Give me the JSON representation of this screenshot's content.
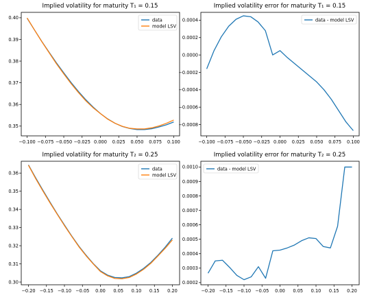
{
  "colors": {
    "data": "#1f77b4",
    "model": "#ff7f0e"
  },
  "chart_data": [
    {
      "id": "tl",
      "type": "line",
      "title": "Implied volatility for maturity T₁ = 0.15",
      "xlabel": "",
      "ylabel": "",
      "xlim": [
        -0.108,
        0.108
      ],
      "ylim": [
        0.3455,
        0.4025
      ],
      "xticks": [
        -0.1,
        -0.075,
        -0.05,
        -0.025,
        0.0,
        0.025,
        0.05,
        0.075,
        0.1
      ],
      "xtick_labels": [
        "−0.100",
        "−0.075",
        "−0.050",
        "−0.025",
        "0.000",
        "0.025",
        "0.050",
        "0.075",
        "0.100"
      ],
      "yticks": [
        0.35,
        0.36,
        0.37,
        0.38,
        0.39,
        0.4
      ],
      "ytick_labels": [
        "0.35",
        "0.36",
        "0.37",
        "0.38",
        "0.39",
        "0.40"
      ],
      "legend": "top-right",
      "grid": false,
      "series": [
        {
          "name": "data",
          "color": "#1f77b4",
          "x": [
            -0.1,
            -0.09,
            -0.08,
            -0.07,
            -0.06,
            -0.05,
            -0.04,
            -0.03,
            -0.02,
            -0.01,
            0.0,
            0.01,
            0.02,
            0.03,
            0.04,
            0.05,
            0.06,
            0.07,
            0.08,
            0.09,
            0.1
          ],
          "y": [
            0.3998,
            0.3944,
            0.3891,
            0.3841,
            0.3792,
            0.3746,
            0.3701,
            0.366,
            0.3622,
            0.3588,
            0.3558,
            0.3533,
            0.3513,
            0.3498,
            0.3489,
            0.3484,
            0.3484,
            0.3488,
            0.3496,
            0.3506,
            0.3519
          ]
        },
        {
          "name": "model LSV",
          "color": "#ff7f0e",
          "x": [
            -0.1,
            -0.09,
            -0.08,
            -0.07,
            -0.06,
            -0.05,
            -0.04,
            -0.03,
            -0.02,
            -0.01,
            0.0,
            0.01,
            0.02,
            0.03,
            0.04,
            0.05,
            0.06,
            0.07,
            0.08,
            0.09,
            0.1
          ],
          "y": [
            0.3999,
            0.3944,
            0.389,
            0.3839,
            0.3788,
            0.3741,
            0.3696,
            0.3655,
            0.3617,
            0.3585,
            0.3558,
            0.3532,
            0.3513,
            0.3499,
            0.349,
            0.3487,
            0.3487,
            0.3492,
            0.3501,
            0.3513,
            0.3528
          ]
        }
      ]
    },
    {
      "id": "tr",
      "type": "line",
      "title": "Implied volatility error for maturity T₁ = 0.15",
      "xlabel": "",
      "ylabel": "",
      "xlim": [
        -0.108,
        0.108
      ],
      "ylim": [
        -0.00093,
        0.00049
      ],
      "xticks": [
        -0.1,
        -0.075,
        -0.05,
        -0.025,
        0.0,
        0.025,
        0.05,
        0.075,
        0.1
      ],
      "xtick_labels": [
        "−0.100",
        "−0.075",
        "−0.050",
        "−0.025",
        "0.000",
        "0.025",
        "0.050",
        "0.075",
        "0.100"
      ],
      "yticks": [
        -0.0008,
        -0.0006,
        -0.0004,
        -0.0002,
        0.0,
        0.0002,
        0.0004
      ],
      "ytick_labels": [
        "−0.0008",
        "−0.0006",
        "−0.0004",
        "−0.0002",
        "0.0000",
        "0.0002",
        "0.0004"
      ],
      "legend": "top-right",
      "grid": false,
      "series": [
        {
          "name": "data - model LSV",
          "color": "#1f77b4",
          "x": [
            -0.1,
            -0.09,
            -0.08,
            -0.07,
            -0.06,
            -0.05,
            -0.04,
            -0.03,
            -0.02,
            -0.01,
            0.0,
            0.01,
            0.02,
            0.03,
            0.04,
            0.05,
            0.06,
            0.07,
            0.08,
            0.09,
            0.1
          ],
          "y": [
            -0.00016,
            5e-05,
            0.00021,
            0.00033,
            0.00041,
            0.00045,
            0.00044,
            0.00038,
            0.00028,
            0.0,
            5e-05,
            -3e-05,
            -0.0001,
            -0.00017,
            -0.00024,
            -0.00031,
            -0.0004,
            -0.00051,
            -0.00064,
            -0.00077,
            -0.00087
          ]
        }
      ]
    },
    {
      "id": "bl",
      "type": "line",
      "title": "Implied volatility for maturity T₂ = 0.25",
      "xlabel": "",
      "ylabel": "",
      "xlim": [
        -0.22,
        0.22
      ],
      "ylim": [
        0.2985,
        0.3665
      ],
      "xticks": [
        -0.2,
        -0.15,
        -0.1,
        -0.05,
        0.0,
        0.05,
        0.1,
        0.15,
        0.2
      ],
      "xtick_labels": [
        "−0.20",
        "−0.15",
        "−0.10",
        "−0.05",
        "0.00",
        "0.05",
        "0.10",
        "0.15",
        "0.20"
      ],
      "yticks": [
        0.3,
        0.31,
        0.32,
        0.33,
        0.34,
        0.35,
        0.36
      ],
      "ytick_labels": [
        "0.30",
        "0.31",
        "0.32",
        "0.33",
        "0.34",
        "0.35",
        "0.36"
      ],
      "legend": "top-right",
      "grid": false,
      "series": [
        {
          "name": "data",
          "color": "#1f77b4",
          "x": [
            -0.2,
            -0.18,
            -0.16,
            -0.14,
            -0.12,
            -0.1,
            -0.08,
            -0.06,
            -0.04,
            -0.02,
            0.0,
            0.02,
            0.04,
            0.06,
            0.08,
            0.1,
            0.12,
            0.14,
            0.16,
            0.18,
            0.2
          ],
          "y": [
            0.3645,
            0.3574,
            0.3506,
            0.344,
            0.3375,
            0.3314,
            0.3254,
            0.3198,
            0.3148,
            0.3102,
            0.3062,
            0.3038,
            0.3025,
            0.3023,
            0.303,
            0.3049,
            0.3075,
            0.3108,
            0.3148,
            0.3192,
            0.3242
          ]
        },
        {
          "name": "model LSV",
          "color": "#ff7f0e",
          "x": [
            -0.2,
            -0.18,
            -0.16,
            -0.14,
            -0.12,
            -0.1,
            -0.08,
            -0.06,
            -0.04,
            -0.02,
            0.0,
            0.02,
            0.04,
            0.06,
            0.08,
            0.1,
            0.12,
            0.14,
            0.16,
            0.18,
            0.2
          ],
          "y": [
            0.3643,
            0.357,
            0.3502,
            0.3436,
            0.3373,
            0.3311,
            0.3252,
            0.3195,
            0.3145,
            0.31,
            0.3058,
            0.3034,
            0.302,
            0.3018,
            0.3025,
            0.3044,
            0.307,
            0.3103,
            0.3144,
            0.3186,
            0.3232
          ]
        }
      ]
    },
    {
      "id": "br",
      "type": "line",
      "title": "Implied volatility error for maturity T₂ = 0.25",
      "xlabel": "",
      "ylabel": "",
      "xlim": [
        -0.22,
        0.22
      ],
      "ylim": [
        0.000185,
        0.00104
      ],
      "xticks": [
        -0.2,
        -0.15,
        -0.1,
        -0.05,
        0.0,
        0.05,
        0.1,
        0.15,
        0.2
      ],
      "xtick_labels": [
        "−0.20",
        "−0.15",
        "−0.10",
        "−0.05",
        "0.00",
        "0.05",
        "0.10",
        "0.15",
        "0.20"
      ],
      "yticks": [
        0.0002,
        0.0003,
        0.0004,
        0.0005,
        0.0006,
        0.0007,
        0.0008,
        0.0009,
        0.001
      ],
      "ytick_labels": [
        "0.0002",
        "0.0003",
        "0.0004",
        "0.0005",
        "0.0006",
        "0.0007",
        "0.0008",
        "0.0009",
        "0.0010"
      ],
      "legend": "top-left",
      "grid": false,
      "series": [
        {
          "name": "data - model LSV",
          "color": "#1f77b4",
          "x": [
            -0.2,
            -0.18,
            -0.16,
            -0.14,
            -0.12,
            -0.1,
            -0.08,
            -0.06,
            -0.04,
            -0.02,
            0.0,
            0.02,
            0.04,
            0.06,
            0.08,
            0.1,
            0.12,
            0.14,
            0.16,
            0.18,
            0.2
          ],
          "y": [
            0.000265,
            0.00035,
            0.000355,
            0.000305,
            0.00025,
            0.00022,
            0.00024,
            0.00031,
            0.00023,
            0.00042,
            0.000425,
            0.00044,
            0.00046,
            0.00049,
            0.00051,
            0.000505,
            0.00045,
            0.00044,
            0.00059,
            0.001,
            0.001
          ]
        }
      ]
    }
  ]
}
